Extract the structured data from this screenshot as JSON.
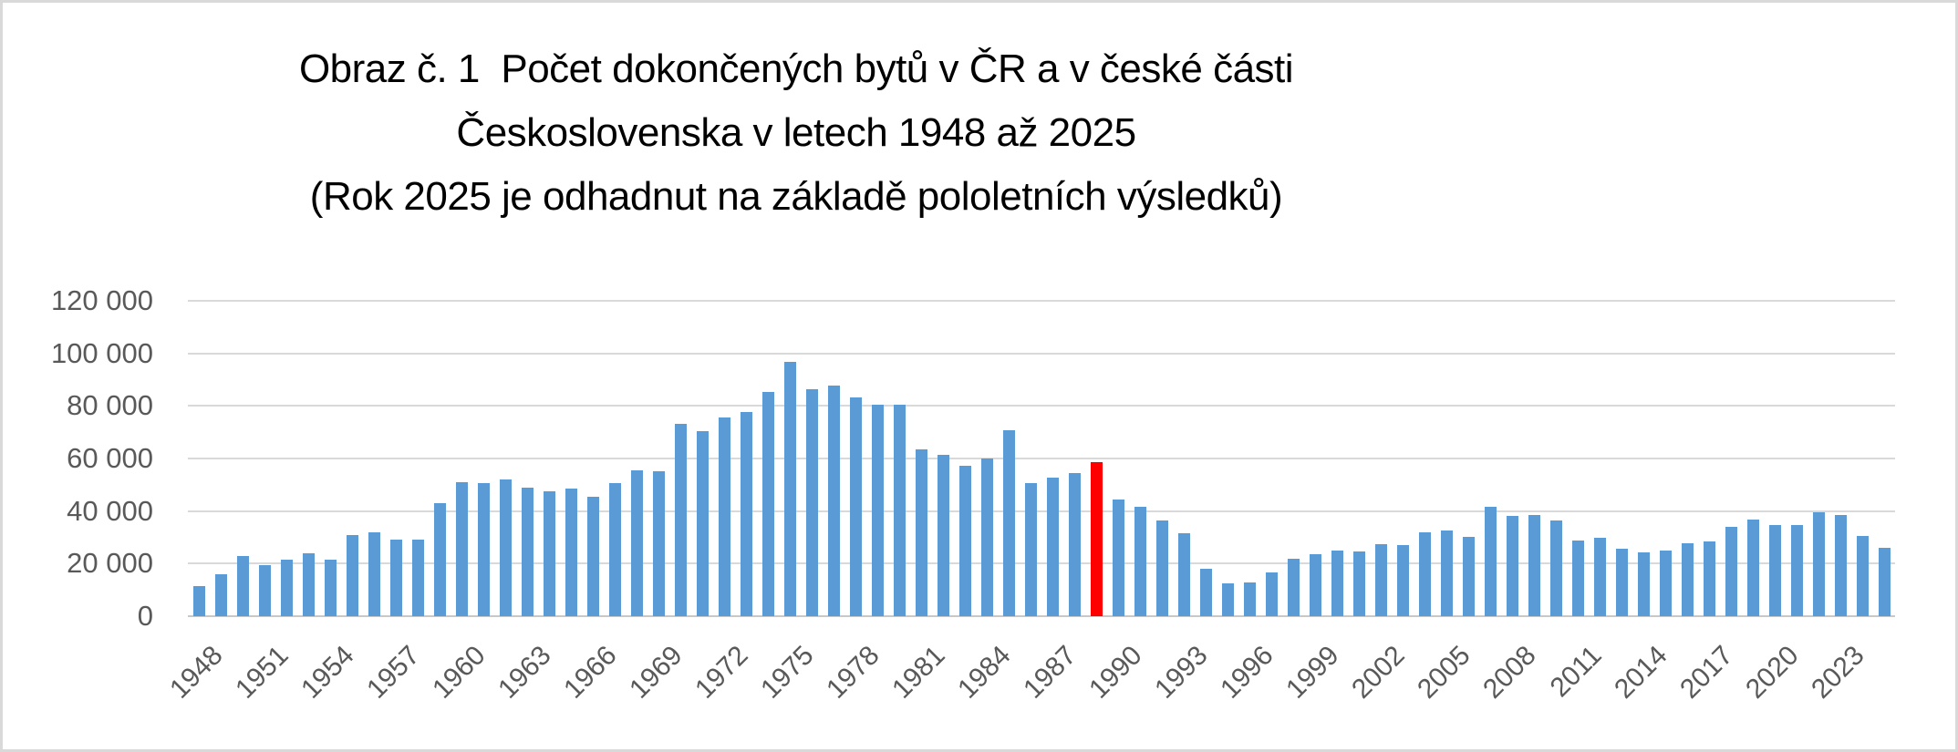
{
  "title": {
    "line1": "Obraz č. 1  Počet dokončených bytů v ČR a v české části",
    "line2": "Československa v letech 1948 až 2025",
    "line3": "(Rok 2025 je odhadnut na základě pololetních výsledků)"
  },
  "colors": {
    "bar": "#5B9BD5",
    "highlight": "#FF0000",
    "gridline": "#D9D9D9",
    "axis_text": "#595959",
    "title_text": "#000000",
    "frame_border": "#D9D9D9",
    "background": "#FFFFFF"
  },
  "chart_data": {
    "type": "bar",
    "title": "Obraz č. 1 Počet dokončených bytů v ČR a v české části Československa v letech 1948 až 2025 (Rok 2025 je odhadnut na základě pololetních výsledků)",
    "xlabel": "",
    "ylabel": "",
    "ylim": [
      0,
      120000
    ],
    "grid": "horizontal",
    "legend": "none",
    "y_ticks": [
      0,
      20000,
      40000,
      60000,
      80000,
      100000,
      120000
    ],
    "y_tick_labels": [
      "0",
      "20 000",
      "40 000",
      "60 000",
      "80 000",
      "100 000",
      "120 000"
    ],
    "x_tick_labels": [
      "1948",
      "1951",
      "1954",
      "1957",
      "1960",
      "1963",
      "1966",
      "1969",
      "1972",
      "1975",
      "1978",
      "1981",
      "1984",
      "1987",
      "1990",
      "1993",
      "1996",
      "1999",
      "2002",
      "2005",
      "2008",
      "2011",
      "2014",
      "2017",
      "2020",
      "2023"
    ],
    "highlight_year": 1989,
    "highlight_color": "#FF0000",
    "bar_color": "#5B9BD5",
    "years": [
      1948,
      1949,
      1950,
      1951,
      1952,
      1953,
      1954,
      1955,
      1956,
      1957,
      1958,
      1959,
      1960,
      1961,
      1962,
      1963,
      1964,
      1965,
      1966,
      1967,
      1968,
      1969,
      1970,
      1971,
      1972,
      1973,
      1974,
      1975,
      1976,
      1977,
      1978,
      1979,
      1980,
      1981,
      1982,
      1983,
      1984,
      1985,
      1986,
      1987,
      1988,
      1989,
      1990,
      1991,
      1992,
      1993,
      1994,
      1995,
      1996,
      1997,
      1998,
      1999,
      2000,
      2001,
      2002,
      2003,
      2004,
      2005,
      2006,
      2007,
      2008,
      2009,
      2010,
      2011,
      2012,
      2013,
      2014,
      2015,
      2016,
      2017,
      2018,
      2019,
      2020,
      2021,
      2022,
      2023,
      2024,
      2025
    ],
    "values": [
      11500,
      16000,
      23000,
      19500,
      21500,
      24000,
      21500,
      31000,
      32000,
      29200,
      29000,
      43000,
      51000,
      50800,
      52000,
      49000,
      47600,
      48700,
      45400,
      50700,
      55600,
      55000,
      73200,
      70400,
      75600,
      77700,
      85200,
      96800,
      86400,
      87600,
      83300,
      80400,
      80400,
      63400,
      61500,
      57200,
      60000,
      70800,
      50700,
      52700,
      54300,
      58500,
      44400,
      41500,
      36400,
      31500,
      18000,
      12400,
      12900,
      16500,
      22000,
      23600,
      25100,
      24500,
      27300,
      27000,
      31900,
      32600,
      30100,
      41600,
      38300,
      38500,
      36400,
      28800,
      29700,
      25600,
      24200,
      25100,
      27600,
      28600,
      34000,
      36600,
      34600,
      34800,
      39400,
      38400,
      30400,
      26100
    ]
  }
}
